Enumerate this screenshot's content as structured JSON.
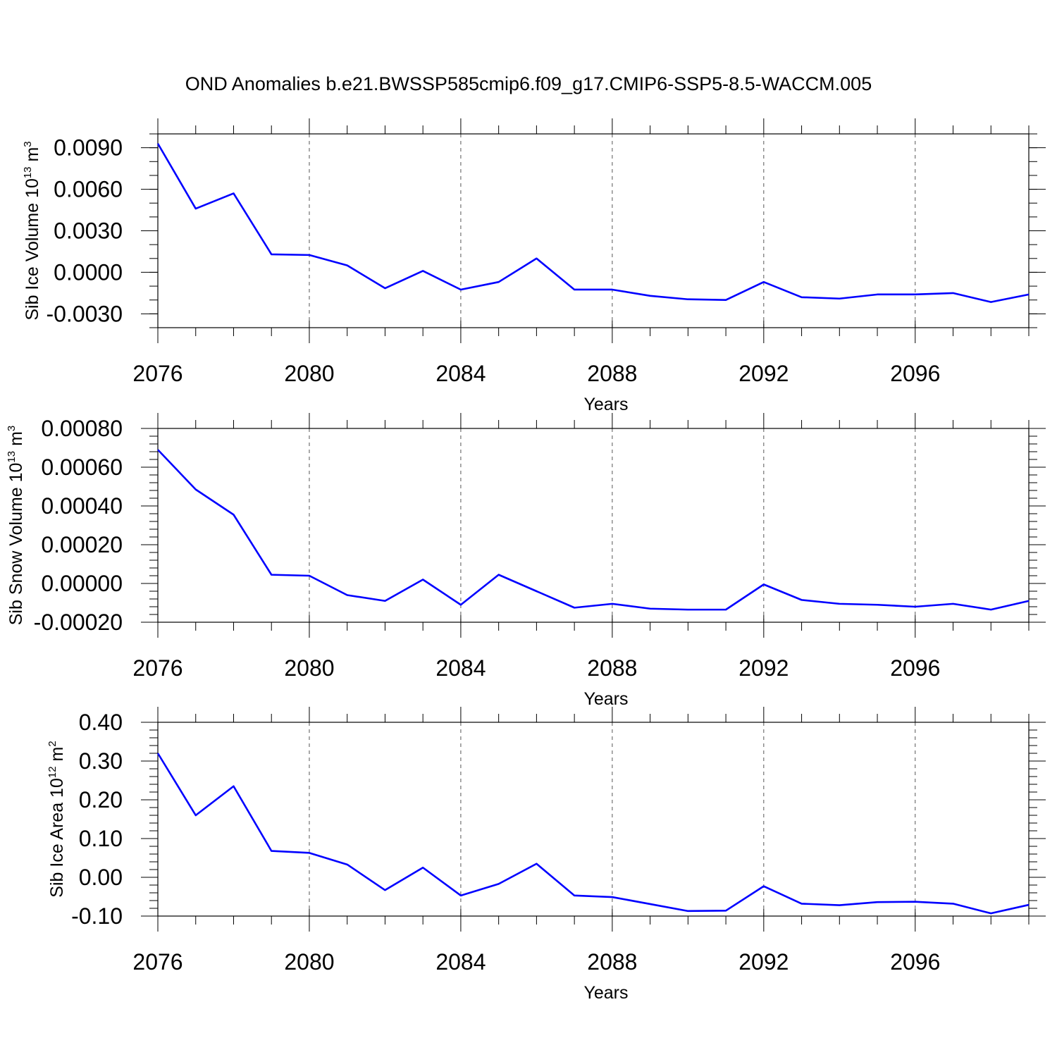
{
  "figure_title": "OND Anomalies b.e21.BWSSP585cmip6.f09_g17.CMIP6-SSP5-8.5-WACCM.005",
  "line_color": "#0000ff",
  "chart_data": [
    {
      "type": "line",
      "ylabel": "Sib Ice Volume 10",
      "ylabel_exp": "13",
      "ylabel_unit": " m",
      "ylabel_unit_exp": "3",
      "xlabel": "Years",
      "xlim": [
        2076,
        2099
      ],
      "ylim": [
        -0.004,
        0.01
      ],
      "x_ticks": [
        2076,
        2080,
        2084,
        2088,
        2092,
        2096
      ],
      "x_tick_labels": [
        "2076",
        "2080",
        "2084",
        "2088",
        "2092",
        "2096"
      ],
      "y_ticks": [
        0.009,
        0.006,
        0.003,
        0.0,
        -0.003
      ],
      "y_tick_labels": [
        "0.0090",
        "0.0060",
        "0.0030",
        "0.0000",
        "-0.0030"
      ],
      "y_minor_step": 0.001,
      "x": [
        2076,
        2077,
        2078,
        2079,
        2080,
        2081,
        2082,
        2083,
        2084,
        2085,
        2086,
        2087,
        2088,
        2089,
        2090,
        2091,
        2092,
        2093,
        2094,
        2095,
        2096,
        2097,
        2098,
        2099
      ],
      "series": [
        {
          "name": "Sib Ice Volume",
          "values": [
            0.0093,
            0.0046,
            0.0057,
            0.0013,
            0.00125,
            0.0005,
            -0.00115,
            0.0001,
            -0.00125,
            -0.0007,
            0.001,
            -0.00125,
            -0.00125,
            -0.0017,
            -0.00195,
            -0.002,
            -0.0007,
            -0.0018,
            -0.0019,
            -0.0016,
            -0.0016,
            -0.0015,
            -0.00215,
            -0.0016
          ]
        }
      ]
    },
    {
      "type": "line",
      "ylabel": "Sib Snow Volume 10",
      "ylabel_exp": "13",
      "ylabel_unit": " m",
      "ylabel_unit_exp": "3",
      "xlabel": "Years",
      "xlim": [
        2076,
        2099
      ],
      "ylim": [
        -0.0002,
        0.0008
      ],
      "x_ticks": [
        2076,
        2080,
        2084,
        2088,
        2092,
        2096
      ],
      "x_tick_labels": [
        "2076",
        "2080",
        "2084",
        "2088",
        "2092",
        "2096"
      ],
      "y_ticks": [
        0.0008,
        0.0006,
        0.0004,
        0.0002,
        0.0,
        -0.0002
      ],
      "y_tick_labels": [
        "0.00080",
        "0.00060",
        "0.00040",
        "0.00020",
        "0.00000",
        "-0.00020"
      ],
      "y_minor_step": 4e-05,
      "x": [
        2076,
        2077,
        2078,
        2079,
        2080,
        2081,
        2082,
        2083,
        2084,
        2085,
        2086,
        2087,
        2088,
        2089,
        2090,
        2091,
        2092,
        2093,
        2094,
        2095,
        2096,
        2097,
        2098,
        2099
      ],
      "series": [
        {
          "name": "Sib Snow Volume",
          "values": [
            0.00069,
            0.000485,
            0.000355,
            4.5e-05,
            4e-05,
            -6e-05,
            -9e-05,
            2e-05,
            -0.00011,
            4.5e-05,
            -4e-05,
            -0.000125,
            -0.000105,
            -0.00013,
            -0.000135,
            -0.000135,
            -5e-06,
            -8.5e-05,
            -0.000105,
            -0.00011,
            -0.00012,
            -0.000105,
            -0.000135,
            -9e-05
          ]
        }
      ]
    },
    {
      "type": "line",
      "ylabel": "Sib Ice Area 10",
      "ylabel_exp": "12",
      "ylabel_unit": " m",
      "ylabel_unit_exp": "2",
      "xlabel": "Years",
      "xlim": [
        2076,
        2099
      ],
      "ylim": [
        -0.1,
        0.4
      ],
      "x_ticks": [
        2076,
        2080,
        2084,
        2088,
        2092,
        2096
      ],
      "x_tick_labels": [
        "2076",
        "2080",
        "2084",
        "2088",
        "2092",
        "2096"
      ],
      "y_ticks": [
        0.4,
        0.3,
        0.2,
        0.1,
        0.0,
        -0.1
      ],
      "y_tick_labels": [
        "0.40",
        "0.30",
        "0.20",
        "0.10",
        "0.00",
        "-0.10"
      ],
      "y_minor_step": 0.02,
      "x": [
        2076,
        2077,
        2078,
        2079,
        2080,
        2081,
        2082,
        2083,
        2084,
        2085,
        2086,
        2087,
        2088,
        2089,
        2090,
        2091,
        2092,
        2093,
        2094,
        2095,
        2096,
        2097,
        2098,
        2099
      ],
      "series": [
        {
          "name": "Sib Ice Area",
          "values": [
            0.32,
            0.16,
            0.235,
            0.068,
            0.063,
            0.033,
            -0.033,
            0.025,
            -0.047,
            -0.017,
            0.035,
            -0.047,
            -0.051,
            -0.069,
            -0.087,
            -0.086,
            -0.023,
            -0.068,
            -0.072,
            -0.064,
            -0.063,
            -0.068,
            -0.093,
            -0.071
          ]
        }
      ]
    }
  ]
}
